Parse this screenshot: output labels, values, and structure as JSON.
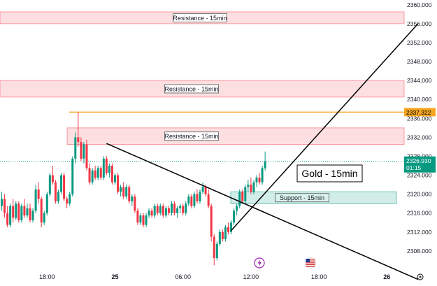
{
  "chart_data": {
    "type": "candlestick",
    "title": "Gold - 15min",
    "y_range": [
      2304,
      2361
    ],
    "y_ticks": [
      2308,
      2312,
      2316,
      2320,
      2324,
      2328,
      2332,
      2336,
      2340,
      2344,
      2348,
      2352,
      2356,
      2360
    ],
    "y_tick_labels": [
      "2308.000",
      "2312.000",
      "2316.000",
      "2320.000",
      "2324.000",
      "2328.000",
      "2332.000",
      "2336.000",
      "2340.000",
      "2344.000",
      "2348.000",
      "2352.000",
      "2356.000",
      "2360.000"
    ],
    "x_tick_labels": [
      {
        "label": "18:00",
        "bar": 16,
        "bold": false
      },
      {
        "label": "25",
        "bar": 40,
        "bold": true
      },
      {
        "label": "06:00",
        "bar": 64,
        "bold": false
      },
      {
        "label": "12:00",
        "bar": 88,
        "bold": false
      },
      {
        "label": "18:00",
        "bar": 112,
        "bold": false
      },
      {
        "label": "26",
        "bar": 136,
        "bold": true
      }
    ],
    "candles": [
      [
        2317.5,
        2320.5,
        2316.5,
        2319.0
      ],
      [
        2319.0,
        2320.0,
        2315.0,
        2316.0
      ],
      [
        2316.0,
        2317.5,
        2313.0,
        2313.5
      ],
      [
        2313.5,
        2318.0,
        2313.0,
        2317.5
      ],
      [
        2317.5,
        2319.0,
        2314.0,
        2315.0
      ],
      [
        2315.0,
        2318.5,
        2314.5,
        2318.0
      ],
      [
        2318.0,
        2318.5,
        2314.0,
        2314.5
      ],
      [
        2314.5,
        2318.0,
        2314.0,
        2317.5
      ],
      [
        2317.5,
        2319.0,
        2315.0,
        2315.5
      ],
      [
        2315.5,
        2318.0,
        2315.0,
        2317.0
      ],
      [
        2317.0,
        2318.0,
        2314.0,
        2314.5
      ],
      [
        2314.5,
        2317.0,
        2314.0,
        2316.5
      ],
      [
        2316.5,
        2322.0,
        2316.0,
        2321.0
      ],
      [
        2321.0,
        2322.5,
        2318.0,
        2319.0
      ],
      [
        2319.0,
        2319.5,
        2313.0,
        2314.0
      ],
      [
        2314.0,
        2316.5,
        2313.5,
        2316.0
      ],
      [
        2316.0,
        2320.5,
        2315.5,
        2320.0
      ],
      [
        2320.0,
        2324.5,
        2319.5,
        2324.0
      ],
      [
        2324.0,
        2326.0,
        2322.0,
        2322.5
      ],
      [
        2322.5,
        2323.0,
        2318.0,
        2318.5
      ],
      [
        2318.5,
        2321.0,
        2318.0,
        2320.5
      ],
      [
        2320.5,
        2324.5,
        2320.0,
        2324.0
      ],
      [
        2324.0,
        2324.5,
        2318.5,
        2319.0
      ],
      [
        2319.0,
        2319.5,
        2317.0,
        2318.0
      ],
      [
        2318.0,
        2320.5,
        2317.5,
        2320.0
      ],
      [
        2320.0,
        2328.0,
        2319.5,
        2327.5
      ],
      [
        2327.5,
        2333.0,
        2326.5,
        2332.0
      ],
      [
        2332.0,
        2337.3,
        2330.0,
        2331.0
      ],
      [
        2331.0,
        2332.0,
        2327.0,
        2327.5
      ],
      [
        2327.5,
        2331.0,
        2326.5,
        2330.5
      ],
      [
        2330.5,
        2331.5,
        2325.0,
        2325.5
      ],
      [
        2325.5,
        2326.5,
        2322.0,
        2322.5
      ],
      [
        2322.5,
        2325.5,
        2322.0,
        2325.0
      ],
      [
        2325.0,
        2326.0,
        2323.0,
        2323.5
      ],
      [
        2323.5,
        2326.0,
        2323.0,
        2325.5
      ],
      [
        2325.5,
        2326.0,
        2323.0,
        2323.5
      ],
      [
        2323.5,
        2328.0,
        2323.0,
        2327.5
      ],
      [
        2327.5,
        2328.0,
        2324.0,
        2324.5
      ],
      [
        2324.5,
        2326.5,
        2323.5,
        2326.0
      ],
      [
        2326.0,
        2326.5,
        2322.0,
        2322.5
      ],
      [
        2322.5,
        2324.5,
        2322.0,
        2324.0
      ],
      [
        2324.0,
        2324.5,
        2320.0,
        2320.5
      ],
      [
        2320.5,
        2322.0,
        2319.5,
        2321.5
      ],
      [
        2321.5,
        2322.5,
        2319.0,
        2319.5
      ],
      [
        2319.5,
        2322.0,
        2319.0,
        2321.5
      ],
      [
        2321.5,
        2322.0,
        2318.0,
        2318.5
      ],
      [
        2318.5,
        2320.0,
        2317.5,
        2319.5
      ],
      [
        2319.5,
        2320.0,
        2316.0,
        2316.5
      ],
      [
        2316.5,
        2317.0,
        2313.5,
        2314.0
      ],
      [
        2314.0,
        2316.0,
        2313.5,
        2315.5
      ],
      [
        2315.5,
        2316.0,
        2313.0,
        2313.5
      ],
      [
        2313.5,
        2316.0,
        2313.0,
        2315.5
      ],
      [
        2315.5,
        2317.0,
        2315.0,
        2316.5
      ],
      [
        2316.5,
        2317.0,
        2315.0,
        2315.5
      ],
      [
        2315.5,
        2318.0,
        2315.0,
        2317.5
      ],
      [
        2317.5,
        2318.0,
        2315.5,
        2316.0
      ],
      [
        2316.0,
        2318.0,
        2315.5,
        2317.5
      ],
      [
        2317.5,
        2318.0,
        2315.0,
        2315.5
      ],
      [
        2315.5,
        2317.5,
        2315.0,
        2317.0
      ],
      [
        2317.0,
        2317.5,
        2315.5,
        2316.0
      ],
      [
        2316.0,
        2318.5,
        2315.5,
        2318.0
      ],
      [
        2318.0,
        2318.5,
        2315.5,
        2316.0
      ],
      [
        2316.0,
        2317.5,
        2315.0,
        2317.0
      ],
      [
        2317.0,
        2318.0,
        2316.0,
        2317.5
      ],
      [
        2317.5,
        2318.0,
        2315.5,
        2316.0
      ],
      [
        2316.0,
        2318.5,
        2315.5,
        2318.0
      ],
      [
        2318.0,
        2320.0,
        2317.5,
        2319.5
      ],
      [
        2319.5,
        2320.0,
        2317.0,
        2317.5
      ],
      [
        2317.5,
        2320.5,
        2317.0,
        2320.0
      ],
      [
        2320.0,
        2321.0,
        2318.0,
        2318.5
      ],
      [
        2318.5,
        2321.0,
        2318.0,
        2320.5
      ],
      [
        2320.5,
        2322.5,
        2320.0,
        2321.5
      ],
      [
        2321.5,
        2322.0,
        2319.5,
        2320.0
      ],
      [
        2320.0,
        2321.0,
        2317.0,
        2317.5
      ],
      [
        2317.5,
        2318.0,
        2310.0,
        2311.0
      ],
      [
        2311.0,
        2311.5,
        2305.0,
        2306.5
      ],
      [
        2306.5,
        2310.0,
        2306.0,
        2309.5
      ],
      [
        2309.5,
        2312.5,
        2309.0,
        2312.0
      ],
      [
        2312.0,
        2312.5,
        2310.0,
        2310.5
      ],
      [
        2310.5,
        2313.5,
        2310.0,
        2313.0
      ],
      [
        2313.0,
        2314.0,
        2311.5,
        2312.0
      ],
      [
        2312.0,
        2314.5,
        2311.5,
        2314.0
      ],
      [
        2314.0,
        2317.0,
        2313.5,
        2316.5
      ],
      [
        2316.5,
        2318.0,
        2315.5,
        2317.5
      ],
      [
        2317.5,
        2321.0,
        2317.0,
        2320.5
      ],
      [
        2320.5,
        2321.0,
        2318.0,
        2318.5
      ],
      [
        2318.5,
        2322.0,
        2318.0,
        2321.5
      ],
      [
        2321.5,
        2323.0,
        2320.5,
        2322.0
      ],
      [
        2322.0,
        2323.5,
        2320.0,
        2320.5
      ],
      [
        2320.5,
        2323.0,
        2320.0,
        2322.5
      ],
      [
        2322.5,
        2324.0,
        2321.5,
        2323.5
      ],
      [
        2323.5,
        2324.5,
        2322.0,
        2322.5
      ],
      [
        2322.5,
        2326.0,
        2322.0,
        2325.5
      ],
      [
        2325.5,
        2329.0,
        2325.0,
        2326.9
      ]
    ],
    "zones": [
      {
        "label": "Resistance - 15min",
        "low": 2356.0,
        "high": 2358.5
      },
      {
        "label": "Resistance - 15min",
        "low": 2340.5,
        "high": 2344.0
      },
      {
        "label": "Resistance - 15min",
        "low": 2330.5,
        "high": 2334.0
      },
      {
        "label": "Support - 15min",
        "low": 2318.0,
        "high": 2320.5
      }
    ],
    "horizontal_line": {
      "value": 2337.322,
      "label": "2337.322",
      "color": "#f5a623"
    },
    "current_price": {
      "value": 2326.93,
      "label": "2326.930",
      "countdown": "01:15",
      "color": "#089981"
    },
    "annotation": {
      "text": "Gold - 15min"
    },
    "trendlines": [
      {
        "from": {
          "bar": 37,
          "price": 2330.7
        },
        "to": {
          "bar": 147,
          "price": 2302.0
        }
      },
      {
        "from": {
          "bar": 81,
          "price": 2312.3
        },
        "to": {
          "bar": 147,
          "price": 2356.0
        }
      }
    ],
    "colors": {
      "up": "#089981",
      "down": "#f23645",
      "zone_resistance_fill": "rgba(242,54,69,0.16)",
      "zone_resistance_border": "rgba(242,54,69,0.45)",
      "zone_support_fill": "rgba(8,153,129,0.18)",
      "zone_support_border": "rgba(8,153,129,0.55)",
      "trendline": "#000000",
      "axis_text": "#131722"
    },
    "icons": [
      "lightning-icon",
      "us-flag-icon",
      "settings-gear-icon"
    ]
  }
}
